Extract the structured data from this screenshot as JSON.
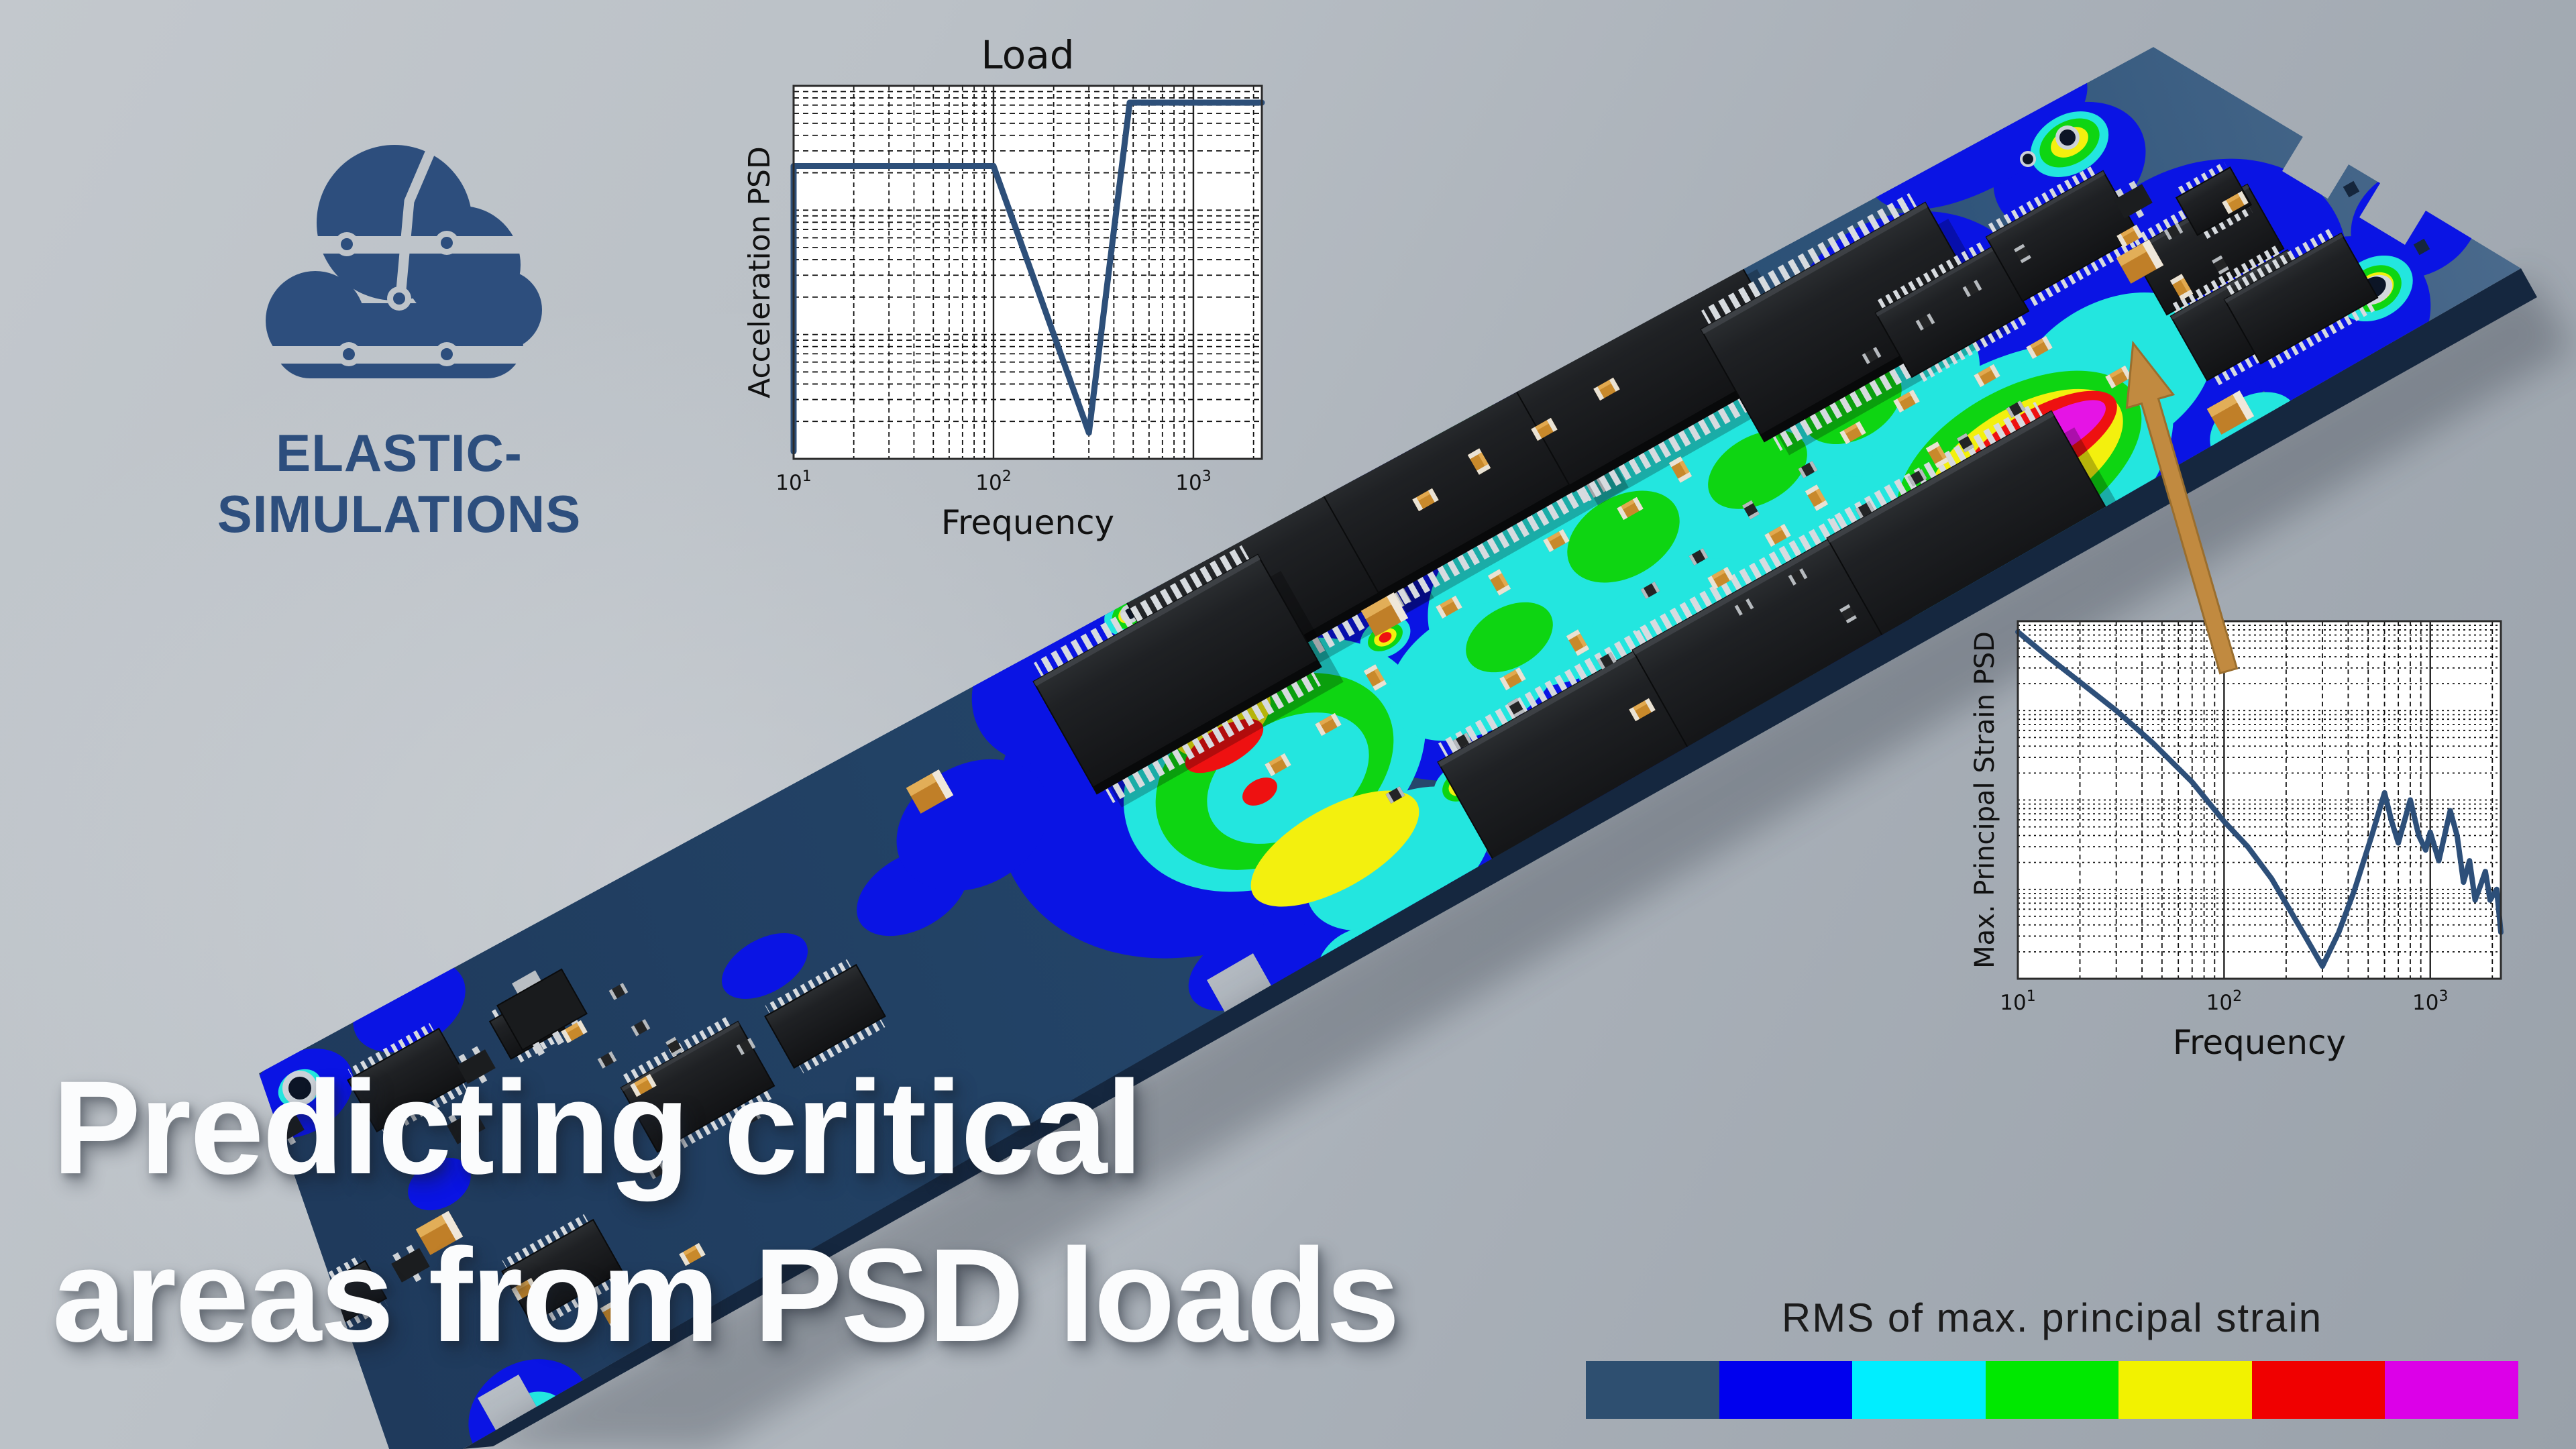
{
  "logo": {
    "brand": "ELASTIC-SIMULATIONS"
  },
  "headline": {
    "line1": "Predicting critical",
    "line2": "areas from PSD loads"
  },
  "legend": {
    "title": "RMS of max. principal strain",
    "colors": [
      "#2e4f70",
      "#0000ee",
      "#00eeff",
      "#00e800",
      "#f2f200",
      "#f00000",
      "#dc00e8"
    ]
  },
  "scene": {
    "board_color": "#20395c",
    "arrow_color": "#c18a40",
    "contour_levels": [
      "#0a14e4",
      "#23e6df",
      "#0ed512",
      "#f3f00e",
      "#ee1111",
      "#e514e5"
    ]
  },
  "chart_data": [
    {
      "id": "load-chart",
      "type": "line",
      "title": "Load",
      "xlabel": "Frequency",
      "ylabel": "Acceleration PSD",
      "xscale": "log",
      "yscale": "log",
      "xrange": [
        10,
        2200
      ],
      "ydecades": 3,
      "grid": "on",
      "line_color": "#2d4f79",
      "xticks": [
        {
          "base": "10",
          "exp": "1",
          "f": 10
        },
        {
          "base": "10",
          "exp": "2",
          "f": 100
        },
        {
          "base": "10",
          "exp": "3",
          "f": 1000
        }
      ],
      "points": [
        [
          10,
          0.02
        ],
        [
          10,
          0.785
        ],
        [
          100,
          0.785
        ],
        [
          300,
          0.07
        ],
        [
          480,
          0.955
        ],
        [
          2200,
          0.955
        ]
      ]
    },
    {
      "id": "strain-chart",
      "type": "line",
      "title": "",
      "xlabel": "Frequency",
      "ylabel": "Max. Principal Strain PSD",
      "xscale": "log",
      "yscale": "log",
      "xrange": [
        10,
        2200
      ],
      "ydecades": 4,
      "grid": "on",
      "line_color": "#2d4f79",
      "xticks": [
        {
          "base": "10",
          "exp": "1",
          "f": 10
        },
        {
          "base": "10",
          "exp": "2",
          "f": 100
        },
        {
          "base": "10",
          "exp": "3",
          "f": 1000
        }
      ],
      "points": [
        [
          10,
          0.97
        ],
        [
          14,
          0.9
        ],
        [
          20,
          0.83
        ],
        [
          30,
          0.75
        ],
        [
          45,
          0.66
        ],
        [
          70,
          0.55
        ],
        [
          100,
          0.44
        ],
        [
          130,
          0.37
        ],
        [
          170,
          0.28
        ],
        [
          230,
          0.15
        ],
        [
          300,
          0.035
        ],
        [
          360,
          0.13
        ],
        [
          430,
          0.25
        ],
        [
          520,
          0.4
        ],
        [
          600,
          0.52
        ],
        [
          650,
          0.44
        ],
        [
          700,
          0.38
        ],
        [
          800,
          0.5
        ],
        [
          880,
          0.4
        ],
        [
          950,
          0.36
        ],
        [
          1000,
          0.41
        ],
        [
          1100,
          0.33
        ],
        [
          1250,
          0.47
        ],
        [
          1350,
          0.4
        ],
        [
          1450,
          0.27
        ],
        [
          1550,
          0.33
        ],
        [
          1650,
          0.22
        ],
        [
          1750,
          0.26
        ],
        [
          1850,
          0.3
        ],
        [
          1950,
          0.22
        ],
        [
          2100,
          0.25
        ],
        [
          2200,
          0.13
        ]
      ]
    }
  ]
}
